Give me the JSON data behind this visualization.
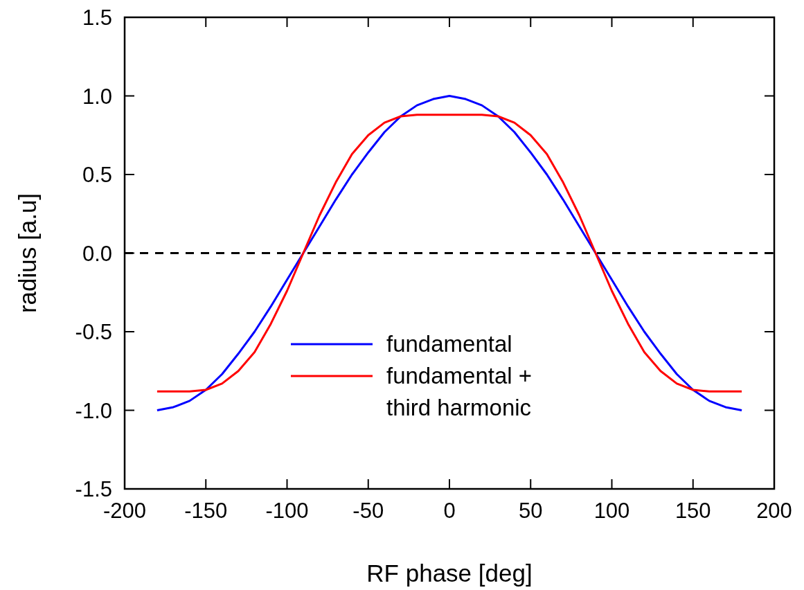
{
  "chart_data": {
    "type": "line",
    "xlabel": "RF phase [deg]",
    "ylabel": "radius [a.u]",
    "x": [
      -180,
      -170,
      -160,
      -150,
      -140,
      -130,
      -120,
      -110,
      -100,
      -90,
      -80,
      -70,
      -60,
      -50,
      -40,
      -30,
      -20,
      -10,
      0,
      10,
      20,
      30,
      40,
      50,
      60,
      70,
      80,
      90,
      100,
      110,
      120,
      130,
      140,
      150,
      160,
      170,
      180
    ],
    "series": [
      {
        "name": "fundamental",
        "color": "#0000ff",
        "values": [
          -1,
          -0.98,
          -0.94,
          -0.87,
          -0.77,
          -0.64,
          -0.5,
          -0.34,
          -0.17,
          0,
          0.17,
          0.34,
          0.5,
          0.64,
          0.77,
          0.87,
          0.94,
          0.98,
          1,
          0.98,
          0.94,
          0.87,
          0.77,
          0.64,
          0.5,
          0.34,
          0.17,
          0,
          -0.17,
          -0.34,
          -0.5,
          -0.64,
          -0.77,
          -0.87,
          -0.94,
          -0.98,
          -1
        ]
      },
      {
        "name": "fundamental +\nthird harmonic",
        "color": "#ff0000",
        "values": [
          -0.88,
          -0.88,
          -0.88,
          -0.87,
          -0.83,
          -0.75,
          -0.63,
          -0.45,
          -0.24,
          0,
          0.24,
          0.45,
          0.63,
          0.75,
          0.83,
          0.87,
          0.88,
          0.88,
          0.88,
          0.88,
          0.88,
          0.87,
          0.83,
          0.75,
          0.63,
          0.45,
          0.24,
          0,
          -0.24,
          -0.45,
          -0.63,
          -0.75,
          -0.83,
          -0.87,
          -0.88,
          -0.88,
          -0.88
        ]
      }
    ],
    "xlim": [
      -200,
      200
    ],
    "xticks": [
      -200,
      -150,
      -100,
      -50,
      0,
      50,
      100,
      150,
      200
    ],
    "ylim": [
      -1.5,
      1.5
    ],
    "yticks": [
      {
        "value": -1.5,
        "label": "-1.5"
      },
      {
        "value": -1,
        "label": "-1.0"
      },
      {
        "value": -0.5,
        "label": "-0.5"
      },
      {
        "value": 0,
        "label": "0.0"
      },
      {
        "value": 0.5,
        "label": "0.5"
      },
      {
        "value": 1,
        "label": "1.0"
      },
      {
        "value": 1.5,
        "label": "1.5"
      }
    ],
    "ref_lines": [
      {
        "axis": "y",
        "value": 0,
        "color": "#000000",
        "line_style": "dashed"
      }
    ],
    "legend": "bottom",
    "grid": false,
    "line_style": "solid",
    "marker": "none"
  }
}
